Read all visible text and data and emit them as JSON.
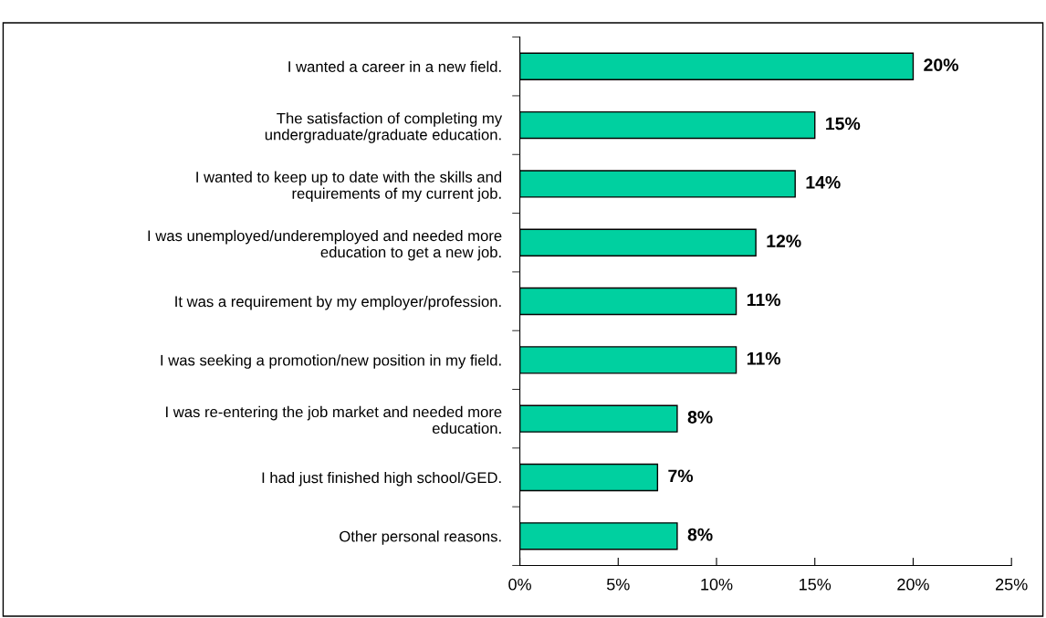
{
  "chart_data": {
    "type": "bar",
    "orientation": "horizontal",
    "categories": [
      "I wanted a career in a new field.",
      "The satisfaction of completing my\nundergraduate/graduate education.",
      "I wanted to keep up to date with the skills and\nrequirements of my current job.",
      "I was unemployed/underemployed and needed more\neducation to get a new job.",
      "It was a requirement by my employer/profession.",
      "I was seeking a promotion/new position in my field.",
      "I was re-entering the job market and needed more\neducation.",
      "I had just finished high school/GED.",
      "Other personal reasons."
    ],
    "values": [
      20,
      15,
      14,
      12,
      11,
      11,
      8,
      7,
      8
    ],
    "value_labels": [
      "20%",
      "15%",
      "14%",
      "12%",
      "11%",
      "11%",
      "8%",
      "7%",
      "8%"
    ],
    "color": "#00d0a0",
    "xlim": [
      0,
      25
    ],
    "xticks": [
      {
        "value": 0,
        "label": "0%"
      },
      {
        "value": 5,
        "label": "5%"
      },
      {
        "value": 10,
        "label": "10%"
      },
      {
        "value": 15,
        "label": "15%"
      },
      {
        "value": 20,
        "label": "20%"
      },
      {
        "value": 25,
        "label": "25%"
      }
    ],
    "grid": false,
    "legend": false
  }
}
